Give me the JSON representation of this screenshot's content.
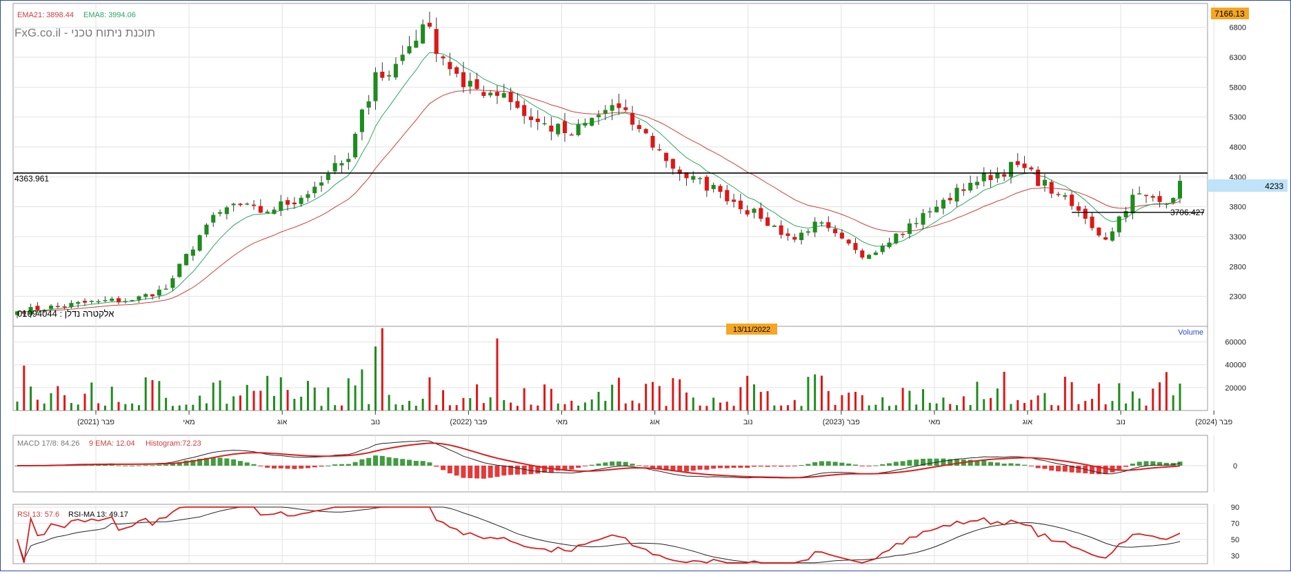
{
  "brand": {
    "watermark": "FxG.co.il - תוכנת ניתוח טכני"
  },
  "symbol": {
    "label": "01094044 : אלקטרה נדלן"
  },
  "colors": {
    "up": "#1e8c1e",
    "down": "#e01616",
    "ema8": "#2aa860",
    "ema21": "#d03c3c",
    "macd": "#222222",
    "signal": "#d81e1e",
    "rsi": "#d81e1e",
    "rsi_ma": "#222222",
    "last_badge": "#4aaeea",
    "max_badge": "#f5a623"
  },
  "price_panel": {
    "ema21_label": "EMA21: 3898.44",
    "ema8_label": "EMA8: 3994.06",
    "max_label": "7166.13",
    "last_label": "4233",
    "hline_label": "4363.961",
    "support_label": "3706.427",
    "y_ticks": [
      "6800",
      "6300",
      "5800",
      "5300",
      "4800",
      "4300",
      "3800",
      "3300",
      "2800",
      "2300"
    ],
    "cursor_date": "13/11/2022"
  },
  "volume_panel": {
    "title": "Volume",
    "y_ticks": [
      "60000",
      "40000",
      "20000"
    ]
  },
  "x_axis": {
    "labels": [
      "פבר (2021)",
      "מאי",
      "אוג",
      "נוב",
      "פבר (2022)",
      "מאי",
      "אוג",
      "נוב",
      "פבר (2023)",
      "מאי",
      "אוג",
      "נוב",
      "פבר (2024)"
    ]
  },
  "macd_panel": {
    "macd_label": "MACD 17/8: 84.26",
    "ema_label": "9 EMA: 12.04",
    "hist_label": "Histogram:72.23",
    "y_ticks": [
      "0"
    ]
  },
  "rsi_panel": {
    "rsi_label": "RSI 13: 57.6",
    "ma_label": "RSI-MA 13: 49.17",
    "y_ticks": [
      "90",
      "70",
      "50",
      "30"
    ]
  },
  "chart_data": {
    "type": "candlestick",
    "period": "weekly",
    "x_range": [
      "2021-01",
      "2024-01"
    ],
    "price_ylim": [
      1800,
      7200
    ],
    "anchors": {
      "t": [
        0,
        12,
        17,
        22,
        28,
        32,
        36,
        42,
        46,
        49,
        53,
        55,
        60,
        66,
        72,
        76,
        82,
        88,
        92,
        98,
        104,
        110,
        115,
        118,
        125,
        130,
        136,
        141,
        148,
        154,
        158,
        161,
        165,
        170,
        172
      ],
      "close": [
        2050,
        2220,
        2240,
        2430,
        3500,
        3850,
        3700,
        3950,
        4350,
        4600,
        6050,
        6000,
        6850,
        5800,
        5700,
        5250,
        5000,
        5500,
        5100,
        4350,
        4050,
        3600,
        3250,
        3550,
        2950,
        3350,
        3800,
        4200,
        4500,
        4000,
        3600,
        3250,
        4000,
        3850,
        4233
      ]
    },
    "volume_ylim": [
      0,
      70000
    ],
    "volume_peaks": [
      {
        "bar": 54,
        "value": 72000
      },
      {
        "bar": 53,
        "value": 56000
      },
      {
        "bar": 71,
        "value": 63000
      }
    ],
    "macd_values": {
      "macd": 84.26,
      "signal": 12.04,
      "histogram": 72.23
    },
    "rsi_ylim": [
      20,
      90
    ],
    "rsi_values": {
      "rsi": 57.6,
      "rsi_ma": 49.17
    }
  }
}
